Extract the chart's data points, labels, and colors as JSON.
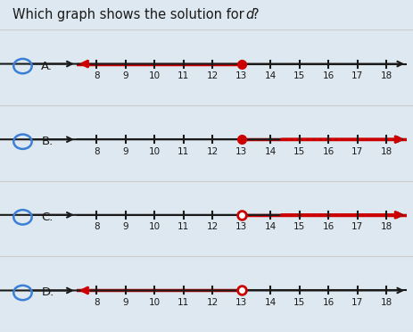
{
  "title_parts": [
    "Which graph shows the solution for ",
    "d",
    "?"
  ],
  "background_color": "#dde8f0",
  "panel_color": "#ffffff",
  "border_color": "#cccccc",
  "number_line_min": 7.3,
  "number_line_max": 18.7,
  "tick_positions": [
    8,
    9,
    10,
    11,
    12,
    13,
    14,
    15,
    16,
    17,
    18
  ],
  "point_value": 13,
  "red_color": "#cc0000",
  "black_color": "#1a1a1a",
  "text_color": "#1a1a1a",
  "radio_color": "#3a7fd5",
  "options": [
    {
      "label": "A.",
      "dot_filled": true,
      "direction": "left",
      "left_red": true,
      "right_red": false
    },
    {
      "label": "B.",
      "dot_filled": true,
      "direction": "right",
      "left_red": false,
      "right_red": true
    },
    {
      "label": "C.",
      "dot_filled": false,
      "direction": "right",
      "left_red": false,
      "right_red": true
    },
    {
      "label": "D.",
      "dot_filled": false,
      "direction": "left",
      "left_red": true,
      "right_red": false
    }
  ]
}
